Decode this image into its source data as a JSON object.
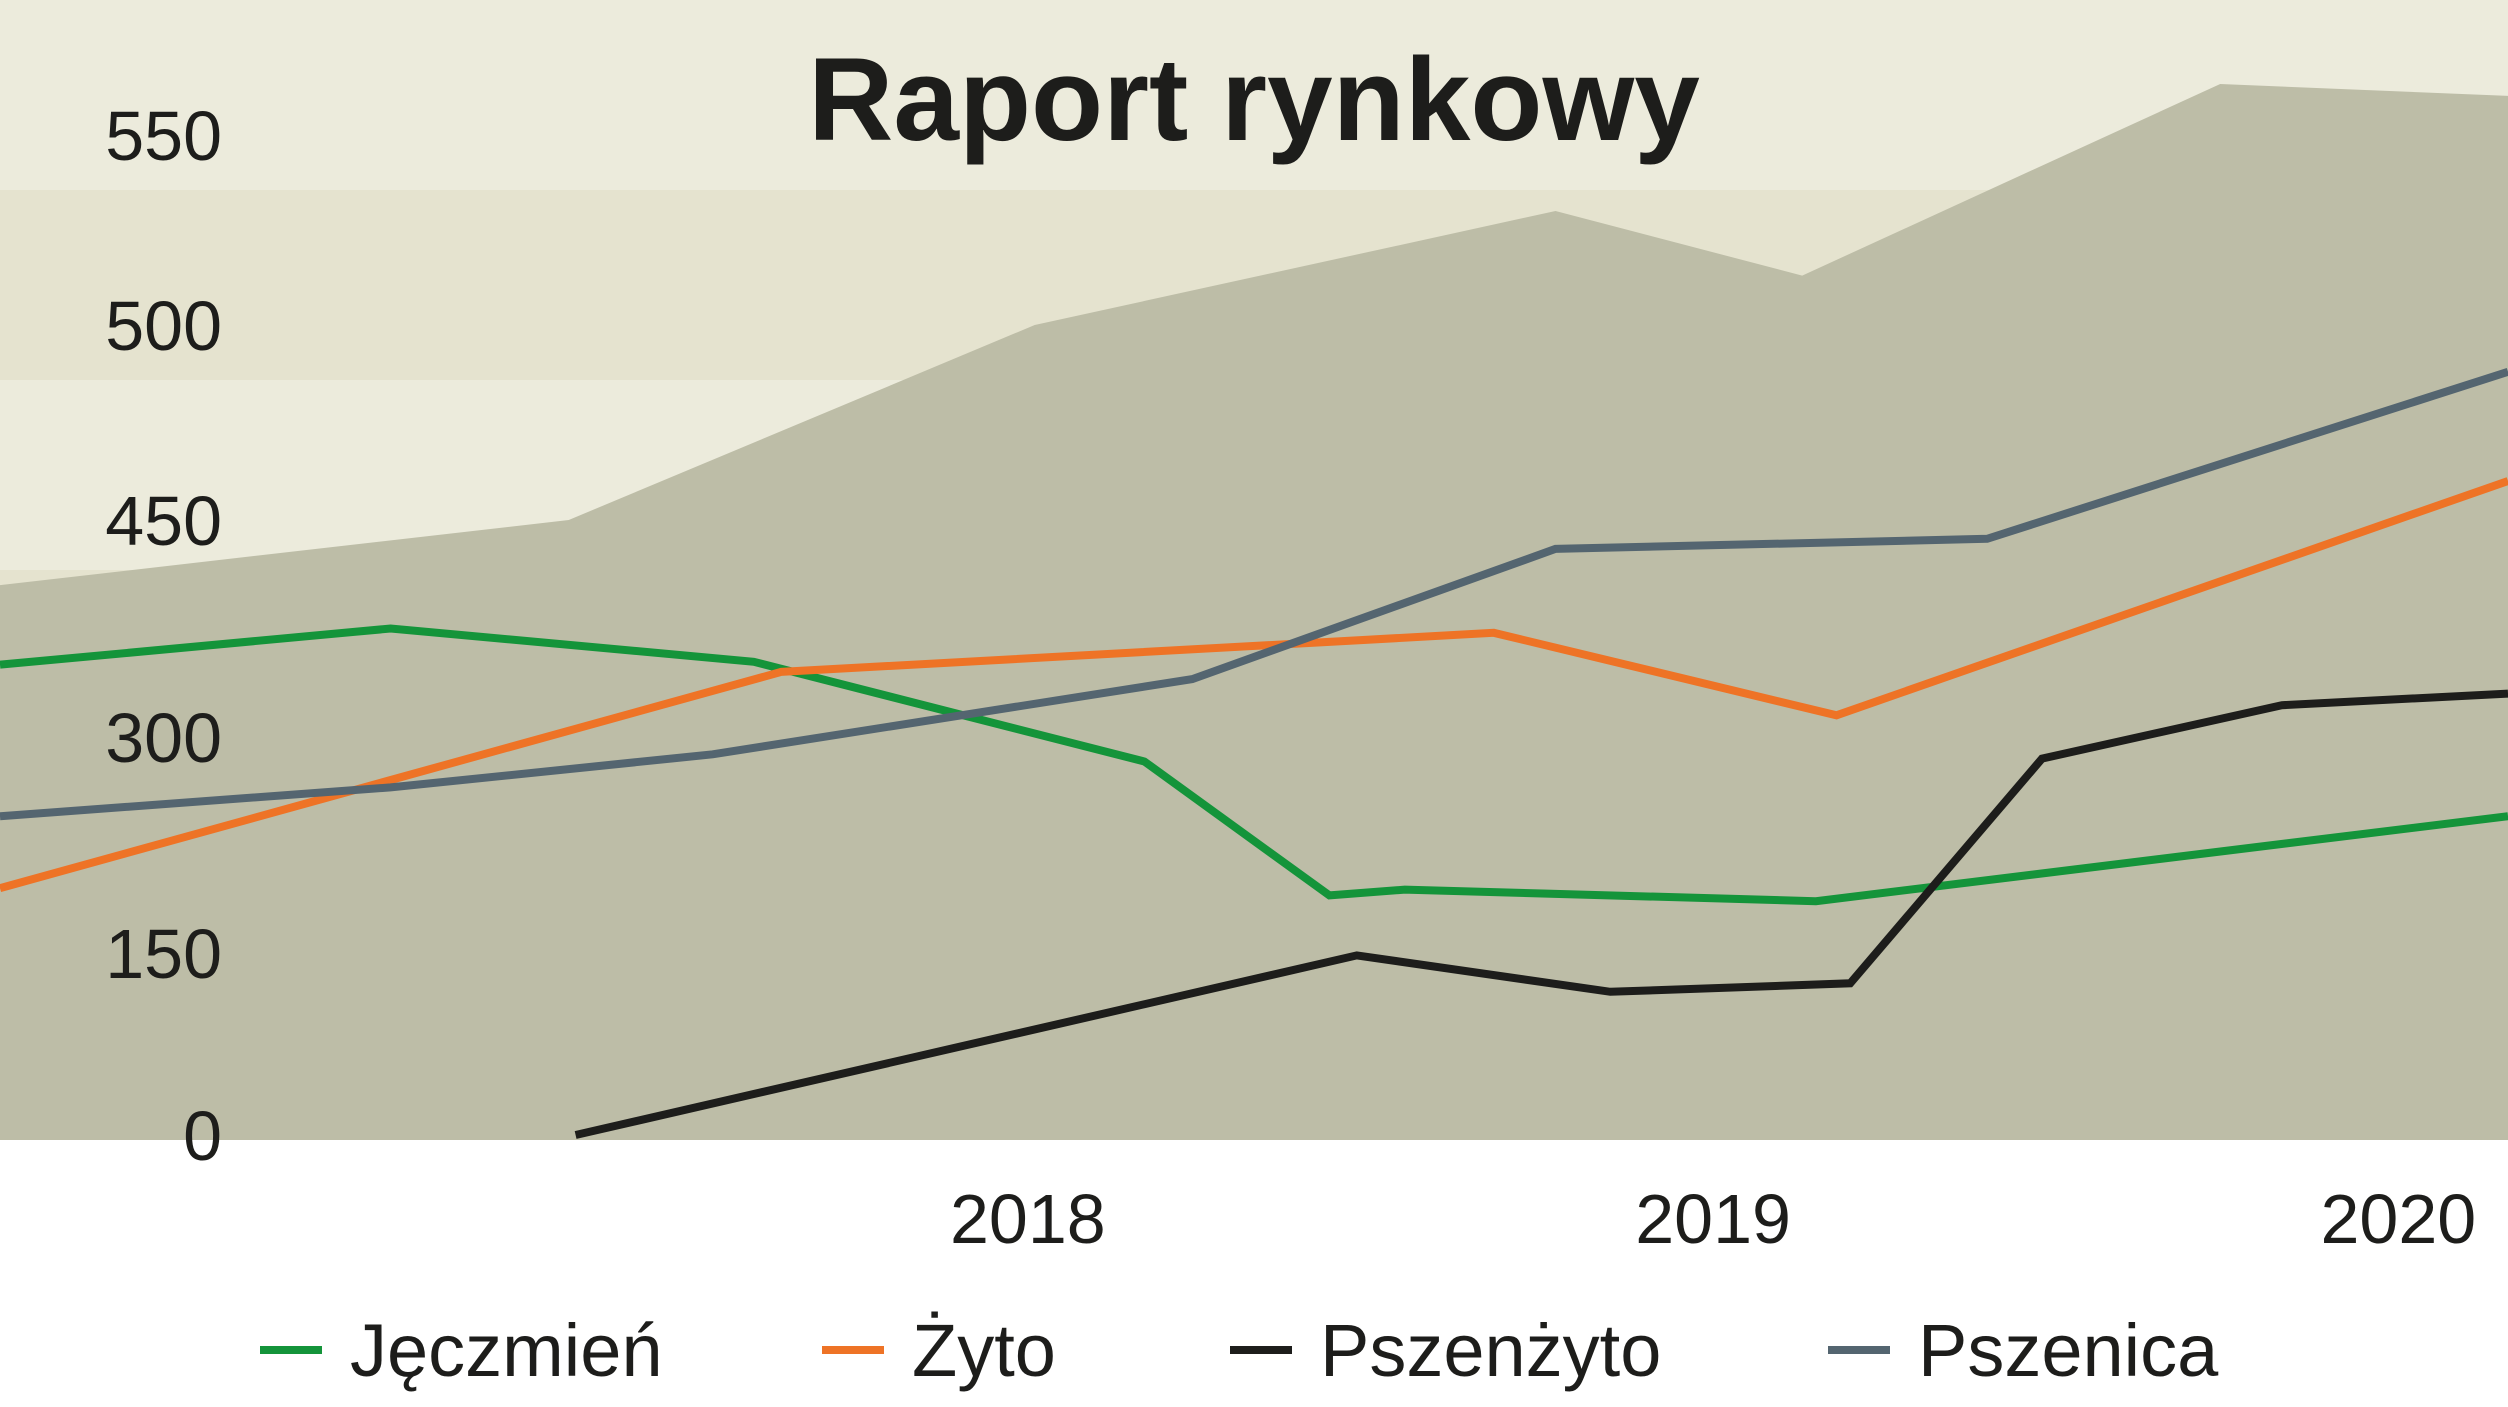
{
  "chart_data": {
    "type": "line",
    "title": "Raport rynkowy",
    "xlabel": "",
    "ylabel": "",
    "y_tick_labels": [
      "0",
      "150",
      "300",
      "450",
      "500",
      "550"
    ],
    "x_tick_labels": [
      "2018",
      "2019",
      "2020"
    ],
    "x_range": [
      2017.0,
      2020.66
    ],
    "grid": false,
    "legend_position": "bottom",
    "background_area": {
      "x": [
        2017.0,
        2017.83,
        2018.51,
        2019.27,
        2019.63,
        2020.24,
        2020.66
      ],
      "values": [
        405,
        450,
        500,
        530,
        513,
        580,
        573
      ]
    },
    "series": [
      {
        "name": "Jęczmień",
        "color": "#14943a",
        "x": [
          2017.0,
          2017.57,
          2018.1,
          2018.67,
          2018.94,
          2019.05,
          2019.65,
          2020.66
        ],
        "values": [
          350,
          375,
          352,
          283,
          190,
          194,
          186,
          245
        ]
      },
      {
        "name": "Żyto",
        "color": "#ee7326",
        "x": [
          2017.0,
          2018.14,
          2019.18,
          2019.68,
          2020.66
        ],
        "values": [
          195,
          345,
          372,
          315,
          460
        ]
      },
      {
        "name": "Pszenżyto",
        "color": "#1d1d1b",
        "x": [
          2017.84,
          2018.98,
          2019.35,
          2019.7,
          2019.98,
          2020.33,
          2020.66
        ],
        "values": [
          0,
          148,
          118,
          125,
          285,
          322,
          330
        ]
      },
      {
        "name": "Pszenica",
        "color": "#546570",
        "x": [
          2017.0,
          2017.57,
          2018.04,
          2018.74,
          2019.27,
          2019.9,
          2020.66
        ],
        "values": [
          245,
          265,
          288,
          340,
          430,
          437,
          488
        ]
      }
    ]
  },
  "colors": {
    "background_top": "#ecebdc",
    "background_mid": "#e5e3cf",
    "area_fill": "#bdbda7"
  }
}
